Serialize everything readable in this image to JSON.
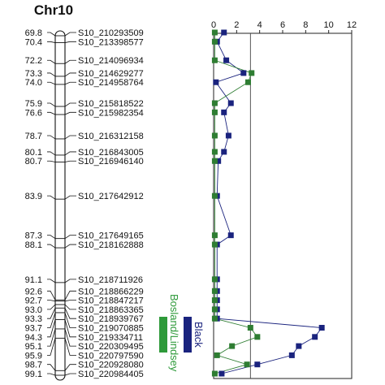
{
  "chart_data": {
    "type": "line",
    "title": "Chr10",
    "chromosome": "Chr10",
    "xlim": [
      0,
      12
    ],
    "x_ticks": [
      0,
      2,
      4,
      6,
      8,
      10,
      12
    ],
    "threshold": 3.2,
    "markers": [
      {
        "pos": "69.8",
        "name": "S10_210293509"
      },
      {
        "pos": "70.4",
        "name": "S10_213398577"
      },
      {
        "pos": "72.2",
        "name": "S10_214096934"
      },
      {
        "pos": "73.3",
        "name": "S10_214629277"
      },
      {
        "pos": "74.0",
        "name": "S10_214958764"
      },
      {
        "pos": "75.9",
        "name": "S10_215818522"
      },
      {
        "pos": "76.6",
        "name": "S10_215982354"
      },
      {
        "pos": "78.7",
        "name": "S10_216312158"
      },
      {
        "pos": "80.1",
        "name": "S10_216843005"
      },
      {
        "pos": "80.7",
        "name": "S10_216946140"
      },
      {
        "pos": "83.9",
        "name": "S10_217642912"
      },
      {
        "pos": "87.3",
        "name": "S10_217649165"
      },
      {
        "pos": "88.1",
        "name": "S10_218162888"
      },
      {
        "pos": "91.1",
        "name": "S10_218711926"
      },
      {
        "pos": "92.6",
        "name": "S10_218866229"
      },
      {
        "pos": "92.7",
        "name": "S10_218847217"
      },
      {
        "pos": "93.0",
        "name": "S10_218863365"
      },
      {
        "pos": "93.3",
        "name": "S10_218939767"
      },
      {
        "pos": "93.7",
        "name": "S10_219070885"
      },
      {
        "pos": "94.3",
        "name": "S10_219334711"
      },
      {
        "pos": "95.1",
        "name": "S10_220309495"
      },
      {
        "pos": "95.9",
        "name": "S10_220797590"
      },
      {
        "pos": "98.7",
        "name": "S10_220928080"
      },
      {
        "pos": "99.1",
        "name": "S10_220984405"
      }
    ],
    "series": [
      {
        "label": "Black",
        "color": "#1a237e",
        "points": [
          [
            69.8,
            0.9
          ],
          [
            70.4,
            0.3
          ],
          [
            72.2,
            1.1
          ],
          [
            73.3,
            2.6
          ],
          [
            74.0,
            0.2
          ],
          [
            75.9,
            1.5
          ],
          [
            76.6,
            0.9
          ],
          [
            78.7,
            1.3
          ],
          [
            80.1,
            0.9
          ],
          [
            80.7,
            0.4
          ],
          [
            83.9,
            0.3
          ],
          [
            87.3,
            1.5
          ],
          [
            88.1,
            0.3
          ],
          [
            91.1,
            0.3
          ],
          [
            92.6,
            0.3
          ],
          [
            92.7,
            0.3
          ],
          [
            93.0,
            0.3
          ],
          [
            93.3,
            0.3
          ],
          [
            93.7,
            9.4
          ],
          [
            94.3,
            8.8
          ],
          [
            95.1,
            7.4
          ],
          [
            95.9,
            6.8
          ],
          [
            98.7,
            3.8
          ],
          [
            99.1,
            0.7
          ]
        ]
      },
      {
        "label": "Bosland/Lindsey",
        "color": "#2e7d32",
        "points": [
          [
            69.8,
            0.1
          ],
          [
            70.4,
            0.1
          ],
          [
            72.2,
            0.1
          ],
          [
            73.3,
            3.3
          ],
          [
            74.0,
            3.0
          ],
          [
            75.9,
            0.1
          ],
          [
            76.6,
            0.1
          ],
          [
            78.7,
            0.1
          ],
          [
            80.1,
            0.1
          ],
          [
            80.7,
            0.1
          ],
          [
            83.9,
            0.1
          ],
          [
            87.3,
            0.1
          ],
          [
            88.1,
            0.1
          ],
          [
            91.1,
            0.1
          ],
          [
            92.6,
            0.1
          ],
          [
            92.7,
            0.1
          ],
          [
            93.0,
            0.1
          ],
          [
            93.3,
            0.1
          ],
          [
            93.7,
            3.2
          ],
          [
            94.3,
            3.8
          ],
          [
            95.1,
            1.6
          ],
          [
            95.9,
            0.3
          ],
          [
            98.7,
            2.9
          ],
          [
            99.1,
            0.1
          ]
        ]
      }
    ],
    "qtl_intervals": [
      {
        "label": "Bosland/Lindsey",
        "color": "#2e9a3a",
        "from": 94.3,
        "to": 95.9
      },
      {
        "label": "Black",
        "color": "#1a237e",
        "from": 93.7,
        "to": 95.1
      }
    ]
  }
}
